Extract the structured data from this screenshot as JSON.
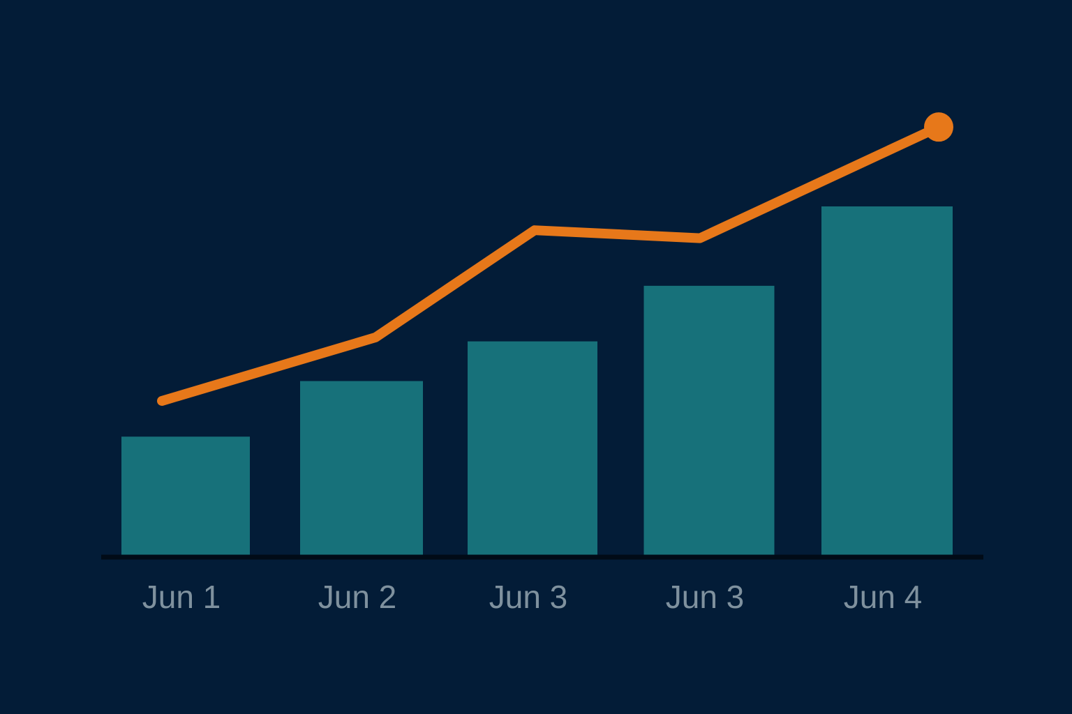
{
  "theme": {
    "background": "#031c37",
    "bar_color": "#17717a",
    "line_color": "#e7781a",
    "axis_color": "#010b17",
    "tick_label_color": "#7f919e"
  },
  "chart_data": {
    "type": "bar",
    "categories": [
      "Jun 1",
      "Jun 2",
      "Jun 3",
      "Jun 3",
      "Jun 4"
    ],
    "series": [
      {
        "type": "bar",
        "values": [
          30,
          44,
          54,
          68,
          88
        ]
      },
      {
        "type": "line",
        "values": [
          39,
          55,
          82,
          80,
          108
        ]
      }
    ],
    "ylim": [
      0,
      140
    ],
    "grid": false,
    "legend": "none",
    "title": "",
    "xlabel": "",
    "ylabel": ""
  }
}
